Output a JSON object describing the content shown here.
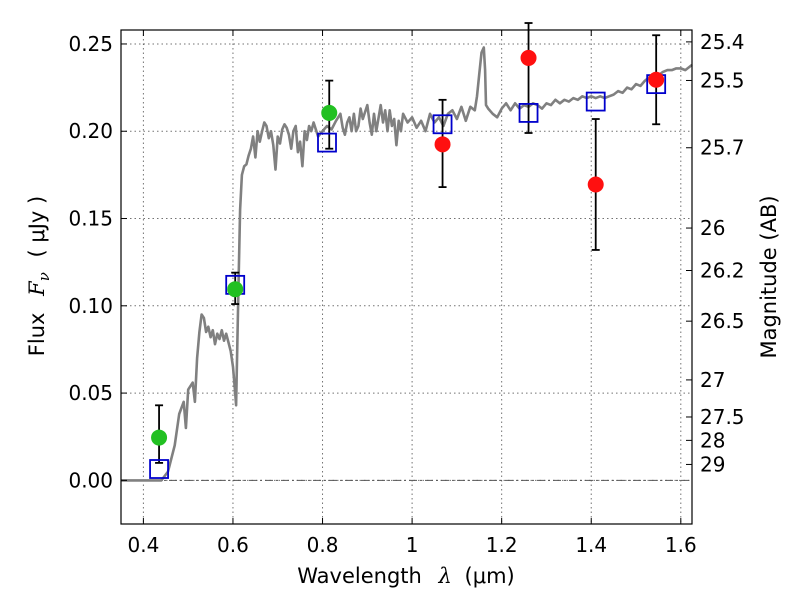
{
  "chart_data": {
    "type": "scatter",
    "xlabel": "Wavelength",
    "xlabel_math": "λ",
    "xlabel_unit": "(μm)",
    "ylabel": "Flux",
    "ylabel_math": "F",
    "ylabel_math_sub": "ν",
    "ylabel_unit": "( μJy )",
    "ylabel_right": "Magnitude (AB)",
    "xlim": [
      0.35,
      1.625
    ],
    "ylim": [
      -0.025,
      0.258
    ],
    "x_ticks": [
      0.4,
      0.6,
      0.8,
      1.0,
      1.2,
      1.4,
      1.6
    ],
    "x_tick_labels": [
      "0.4",
      "0.6",
      "0.8",
      "1",
      "1.2",
      "1.4",
      "1.6"
    ],
    "y_ticks": [
      0.0,
      0.05,
      0.1,
      0.15,
      0.2,
      0.25
    ],
    "y_tick_labels": [
      "0.00",
      "0.05",
      "0.10",
      "0.15",
      "0.20",
      "0.25"
    ],
    "right_ticks": [
      {
        "mag": 25.4,
        "label": "25.4"
      },
      {
        "mag": 25.5,
        "label": "25.5"
      },
      {
        "mag": 25.7,
        "label": "25.7"
      },
      {
        "mag": 26,
        "label": "26"
      },
      {
        "mag": 26.2,
        "label": "26.2"
      },
      {
        "mag": 26.5,
        "label": "26.5"
      },
      {
        "mag": 27,
        "label": "27"
      },
      {
        "mag": 27.5,
        "label": "27.5"
      },
      {
        "mag": 28,
        "label": "28"
      },
      {
        "mag": 29,
        "label": "29"
      }
    ],
    "grid": true,
    "colors": {
      "model": "#808080",
      "green": "#22c022",
      "red": "#ff1010",
      "square": "#0000cc",
      "errorbar": "#000000",
      "zero_line": "#555555"
    },
    "series": [
      {
        "name": "model spectrum",
        "kind": "line",
        "points": [
          [
            0.35,
            0.0
          ],
          [
            0.44,
            0.0
          ],
          [
            0.455,
            0.005
          ],
          [
            0.47,
            0.02
          ],
          [
            0.48,
            0.038
          ],
          [
            0.49,
            0.045
          ],
          [
            0.495,
            0.03
          ],
          [
            0.5,
            0.052
          ],
          [
            0.51,
            0.056
          ],
          [
            0.515,
            0.045
          ],
          [
            0.52,
            0.07
          ],
          [
            0.525,
            0.085
          ],
          [
            0.53,
            0.095
          ],
          [
            0.535,
            0.093
          ],
          [
            0.54,
            0.085
          ],
          [
            0.545,
            0.088
          ],
          [
            0.55,
            0.082
          ],
          [
            0.555,
            0.086
          ],
          [
            0.56,
            0.078
          ],
          [
            0.565,
            0.084
          ],
          [
            0.57,
            0.081
          ],
          [
            0.575,
            0.086
          ],
          [
            0.58,
            0.08
          ],
          [
            0.585,
            0.084
          ],
          [
            0.59,
            0.079
          ],
          [
            0.595,
            0.074
          ],
          [
            0.6,
            0.065
          ],
          [
            0.605,
            0.05
          ],
          [
            0.607,
            0.043
          ],
          [
            0.61,
            0.08
          ],
          [
            0.613,
            0.12
          ],
          [
            0.616,
            0.155
          ],
          [
            0.62,
            0.175
          ],
          [
            0.625,
            0.18
          ],
          [
            0.63,
            0.181
          ],
          [
            0.635,
            0.186
          ],
          [
            0.64,
            0.19
          ],
          [
            0.645,
            0.197
          ],
          [
            0.65,
            0.185
          ],
          [
            0.655,
            0.2
          ],
          [
            0.66,
            0.194
          ],
          [
            0.665,
            0.2
          ],
          [
            0.67,
            0.205
          ],
          [
            0.675,
            0.203
          ],
          [
            0.68,
            0.196
          ],
          [
            0.685,
            0.2
          ],
          [
            0.69,
            0.192
          ],
          [
            0.695,
            0.178
          ],
          [
            0.7,
            0.197
          ],
          [
            0.705,
            0.193
          ],
          [
            0.71,
            0.201
          ],
          [
            0.715,
            0.204
          ],
          [
            0.72,
            0.202
          ],
          [
            0.725,
            0.198
          ],
          [
            0.73,
            0.19
          ],
          [
            0.735,
            0.2
          ],
          [
            0.74,
            0.203
          ],
          [
            0.745,
            0.188
          ],
          [
            0.75,
            0.194
          ],
          [
            0.755,
            0.18
          ],
          [
            0.76,
            0.2
          ],
          [
            0.765,
            0.195
          ],
          [
            0.77,
            0.203
          ],
          [
            0.775,
            0.2
          ],
          [
            0.78,
            0.205
          ],
          [
            0.79,
            0.197
          ],
          [
            0.8,
            0.2
          ],
          [
            0.81,
            0.203
          ],
          [
            0.82,
            0.201
          ],
          [
            0.83,
            0.206
          ],
          [
            0.84,
            0.21
          ],
          [
            0.845,
            0.202
          ],
          [
            0.85,
            0.198
          ],
          [
            0.855,
            0.205
          ],
          [
            0.86,
            0.208
          ],
          [
            0.865,
            0.2
          ],
          [
            0.87,
            0.21
          ],
          [
            0.875,
            0.2
          ],
          [
            0.88,
            0.203
          ],
          [
            0.885,
            0.213
          ],
          [
            0.89,
            0.207
          ],
          [
            0.9,
            0.215
          ],
          [
            0.905,
            0.205
          ],
          [
            0.91,
            0.198
          ],
          [
            0.915,
            0.21
          ],
          [
            0.92,
            0.2
          ],
          [
            0.93,
            0.215
          ],
          [
            0.935,
            0.205
          ],
          [
            0.94,
            0.212
          ],
          [
            0.945,
            0.2
          ],
          [
            0.95,
            0.212
          ],
          [
            0.955,
            0.203
          ],
          [
            0.96,
            0.207
          ],
          [
            0.965,
            0.192
          ],
          [
            0.97,
            0.206
          ],
          [
            0.975,
            0.2
          ],
          [
            0.98,
            0.21
          ],
          [
            0.99,
            0.205
          ],
          [
            1.0,
            0.208
          ],
          [
            1.01,
            0.202
          ],
          [
            1.02,
            0.206
          ],
          [
            1.03,
            0.2
          ],
          [
            1.04,
            0.21
          ],
          [
            1.05,
            0.205
          ],
          [
            1.06,
            0.208
          ],
          [
            1.07,
            0.203
          ],
          [
            1.08,
            0.21
          ],
          [
            1.09,
            0.212
          ],
          [
            1.1,
            0.207
          ],
          [
            1.11,
            0.214
          ],
          [
            1.12,
            0.206
          ],
          [
            1.13,
            0.214
          ],
          [
            1.14,
            0.212
          ],
          [
            1.145,
            0.22
          ],
          [
            1.15,
            0.233
          ],
          [
            1.155,
            0.245
          ],
          [
            1.16,
            0.248
          ],
          [
            1.163,
            0.235
          ],
          [
            1.165,
            0.215
          ],
          [
            1.17,
            0.213
          ],
          [
            1.18,
            0.21
          ],
          [
            1.19,
            0.208
          ],
          [
            1.2,
            0.213
          ],
          [
            1.21,
            0.216
          ],
          [
            1.22,
            0.212
          ],
          [
            1.23,
            0.216
          ],
          [
            1.24,
            0.213
          ],
          [
            1.25,
            0.215
          ],
          [
            1.26,
            0.214
          ],
          [
            1.27,
            0.216
          ],
          [
            1.28,
            0.215
          ],
          [
            1.29,
            0.213
          ],
          [
            1.3,
            0.216
          ],
          [
            1.31,
            0.215
          ],
          [
            1.32,
            0.218
          ],
          [
            1.33,
            0.216
          ],
          [
            1.34,
            0.218
          ],
          [
            1.35,
            0.217
          ],
          [
            1.36,
            0.219
          ],
          [
            1.37,
            0.218
          ],
          [
            1.38,
            0.22
          ],
          [
            1.39,
            0.219
          ],
          [
            1.4,
            0.22
          ],
          [
            1.41,
            0.219
          ],
          [
            1.42,
            0.22
          ],
          [
            1.43,
            0.219
          ],
          [
            1.44,
            0.22
          ],
          [
            1.45,
            0.221
          ],
          [
            1.46,
            0.223
          ],
          [
            1.47,
            0.222
          ],
          [
            1.48,
            0.225
          ],
          [
            1.49,
            0.224
          ],
          [
            1.5,
            0.227
          ],
          [
            1.51,
            0.226
          ],
          [
            1.52,
            0.229
          ],
          [
            1.53,
            0.231
          ],
          [
            1.54,
            0.233
          ],
          [
            1.55,
            0.232
          ],
          [
            1.56,
            0.234
          ],
          [
            1.57,
            0.235
          ],
          [
            1.58,
            0.235
          ],
          [
            1.59,
            0.236
          ],
          [
            1.6,
            0.236
          ],
          [
            1.61,
            0.235
          ],
          [
            1.625,
            0.238
          ]
        ]
      },
      {
        "name": "green points",
        "kind": "circle",
        "color_key": "green",
        "points": [
          {
            "x": 0.435,
            "y": 0.0245,
            "err_lo": 0.01,
            "err_hi": 0.043
          },
          {
            "x": 0.605,
            "y": 0.1095,
            "err_lo": 0.101,
            "err_hi": 0.119
          },
          {
            "x": 0.815,
            "y": 0.2105,
            "err_lo": 0.19,
            "err_hi": 0.229
          }
        ]
      },
      {
        "name": "red points",
        "kind": "circle",
        "color_key": "red",
        "points": [
          {
            "x": 1.068,
            "y": 0.1925,
            "err_lo": 0.168,
            "err_hi": 0.218
          },
          {
            "x": 1.26,
            "y": 0.242,
            "err_lo": 0.199,
            "err_hi": 0.262
          },
          {
            "x": 1.41,
            "y": 0.1695,
            "err_lo": 0.132,
            "err_hi": 0.207
          },
          {
            "x": 1.545,
            "y": 0.2295,
            "err_lo": 0.204,
            "err_hi": 0.255
          }
        ]
      },
      {
        "name": "model photometry",
        "kind": "square",
        "color_key": "square",
        "points": [
          {
            "x": 0.435,
            "y": 0.0065
          },
          {
            "x": 0.605,
            "y": 0.112
          },
          {
            "x": 0.81,
            "y": 0.1935
          },
          {
            "x": 1.068,
            "y": 0.204
          },
          {
            "x": 1.26,
            "y": 0.2105
          },
          {
            "x": 1.41,
            "y": 0.217
          },
          {
            "x": 1.545,
            "y": 0.227
          }
        ]
      }
    ]
  }
}
